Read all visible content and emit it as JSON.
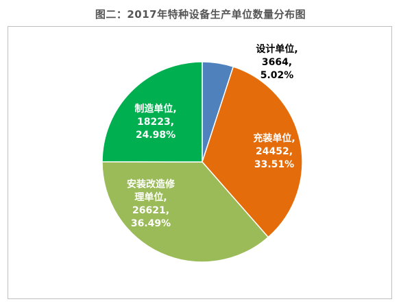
{
  "title": "图二：2017年特种设备生产单位数量分布图",
  "chart_data": {
    "type": "pie",
    "title": "图二：2017年特种设备生产单位数量分布图",
    "slices": [
      {
        "name": "设计单位,",
        "value": 3664,
        "value_label": "3664,",
        "percent_label": "5.02%",
        "percent": 5.02,
        "color": "#4f81bd"
      },
      {
        "name": "充装单位,",
        "value": 24452,
        "value_label": "24452,",
        "percent_label": "33.51%",
        "percent": 33.51,
        "color": "#e46c0a"
      },
      {
        "name": "安装改造修理单位,",
        "name_lines": [
          "安装改造修",
          "理单位,"
        ],
        "value": 26621,
        "value_label": "26621,",
        "percent_label": "36.49%",
        "percent": 36.49,
        "color": "#9bbb59"
      },
      {
        "name": "制造单位,",
        "value": 18223,
        "value_label": "18223,",
        "percent_label": "24.98%",
        "percent": 24.98,
        "color": "#00b050"
      }
    ],
    "start_angle_deg": 0,
    "direction": "clockwise",
    "legend": "none"
  }
}
